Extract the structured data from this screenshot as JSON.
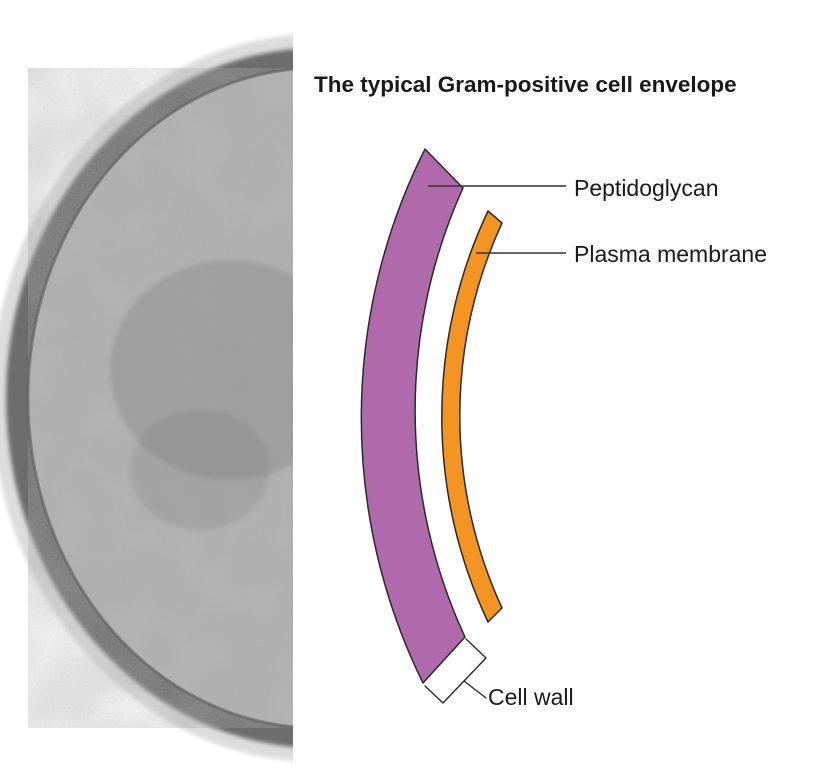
{
  "title": "The typical Gram-positive cell envelope",
  "labels": {
    "peptidoglycan": "Peptidoglycan",
    "plasma_membrane": "Plasma membrane",
    "cell_wall": "Cell wall"
  },
  "colors": {
    "peptidoglycan": "#b06aab",
    "plasma_membrane": "#f39423",
    "outline": "#2a2a2a",
    "micrograph_outer_layer": "#6d6d6d",
    "micrograph_cytoplasm": "#b3b3b3"
  }
}
